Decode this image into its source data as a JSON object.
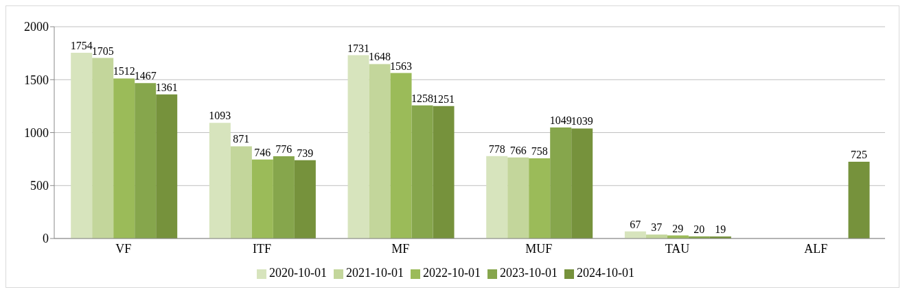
{
  "chart_data": {
    "type": "bar",
    "categories": [
      "VF",
      "ITF",
      "MF",
      "MUF",
      "TAU",
      "ALF"
    ],
    "series": [
      {
        "name": "2020-10-01",
        "color": "#d7e4bd",
        "values": [
          1754,
          1093,
          1731,
          778,
          67,
          null
        ]
      },
      {
        "name": "2021-10-01",
        "color": "#c3d69b",
        "values": [
          1705,
          871,
          1648,
          766,
          37,
          null
        ]
      },
      {
        "name": "2022-10-01",
        "color": "#9bbb59",
        "values": [
          1512,
          746,
          1563,
          758,
          29,
          null
        ]
      },
      {
        "name": "2023-10-01",
        "color": "#86a64c",
        "values": [
          1467,
          776,
          1258,
          1049,
          20,
          null
        ]
      },
      {
        "name": "2024-10-01",
        "color": "#76923c",
        "values": [
          1361,
          739,
          1251,
          1039,
          19,
          725
        ]
      }
    ],
    "ylim": [
      0,
      2000
    ],
    "yticks": [
      0,
      500,
      1000,
      1500,
      2000
    ],
    "grid": "y",
    "legend": "bottom",
    "data_labels": true
  }
}
